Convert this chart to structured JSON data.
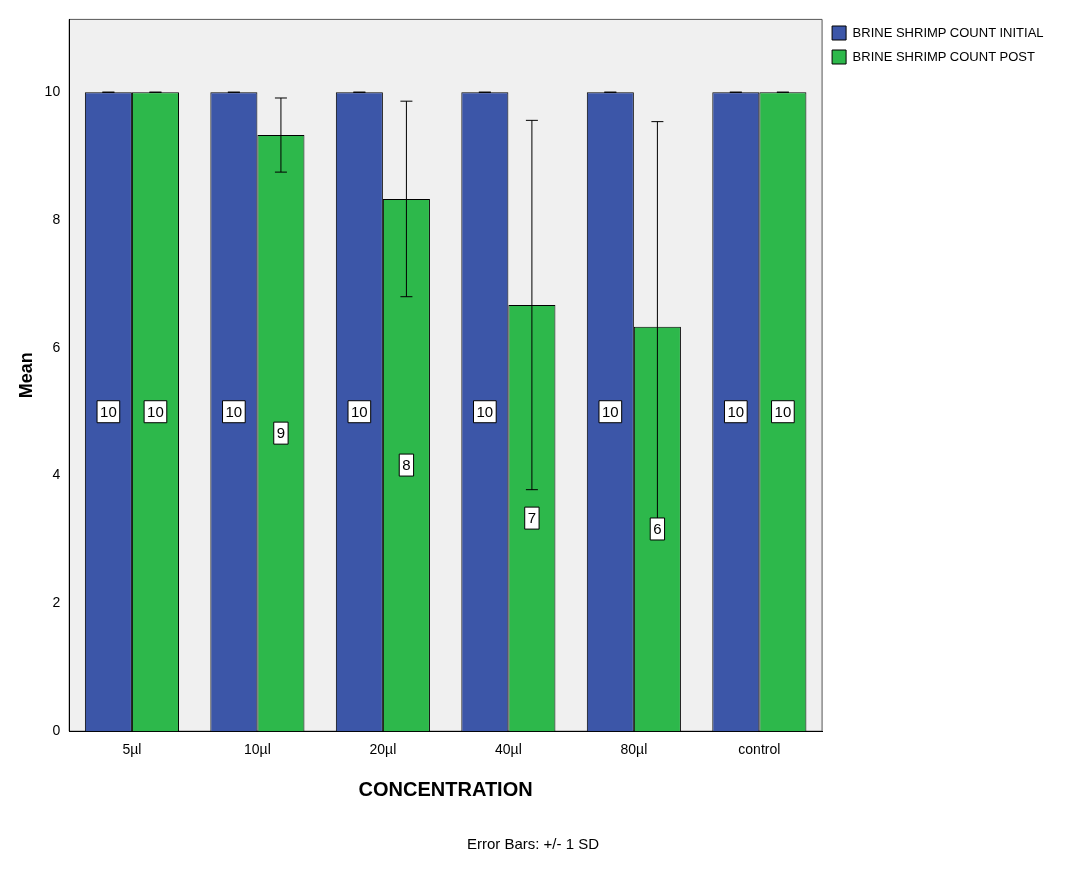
{
  "chart_data": {
    "type": "bar",
    "xlabel": "CONCENTRATION",
    "ylabel": "Mean",
    "categories": [
      "5µl",
      "10µl",
      "20µl",
      "40µl",
      "80µl",
      "control"
    ],
    "series": [
      {
        "name": "BRINE SHRIMP COUNT INITIAL",
        "color": "#3c56a8",
        "values": [
          10,
          10,
          10,
          10,
          10,
          10
        ],
        "errors": [
          0,
          0,
          0,
          0,
          0,
          0
        ],
        "value_labels": [
          "10",
          "10",
          "10",
          "10",
          "10",
          "10"
        ]
      },
      {
        "name": "BRINE SHRIMP COUNT POST",
        "color": "#2db84b",
        "values": [
          10,
          9.33,
          8.33,
          6.67,
          6.33,
          10
        ],
        "errors": [
          0,
          0.58,
          1.53,
          2.89,
          3.21,
          0
        ],
        "value_labels": [
          "10",
          "9",
          "8",
          "7",
          "6",
          "10"
        ]
      }
    ],
    "ylim": [
      0,
      11.14
    ],
    "yticks": [
      0,
      2,
      4,
      6,
      8,
      10
    ],
    "grid": false,
    "legend": "top right",
    "annotations": [
      "Error Bars: +/- 1 SD"
    ]
  }
}
